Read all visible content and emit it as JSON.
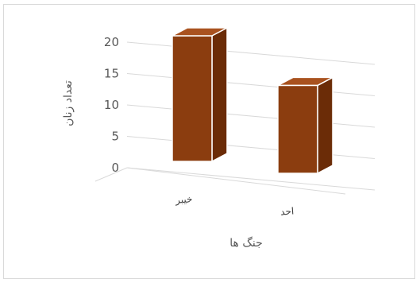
{
  "chart_data": {
    "type": "bar",
    "categories": [
      "خیبر",
      "احد"
    ],
    "values": [
      20,
      14
    ],
    "title": "",
    "xlabel": "جنگ ها",
    "ylabel": "تعداد زنان",
    "ylim": [
      0,
      20
    ],
    "yticks": [
      0,
      5,
      10,
      15,
      20
    ],
    "grid": true,
    "legend": "none",
    "three_d": true,
    "colors": {
      "bar_front": "#8b3d0f",
      "bar_side": "#6b2c07",
      "bar_top": "#a9521f",
      "bar_edge": "#ffffff",
      "grid": "#d9d9d9"
    }
  }
}
